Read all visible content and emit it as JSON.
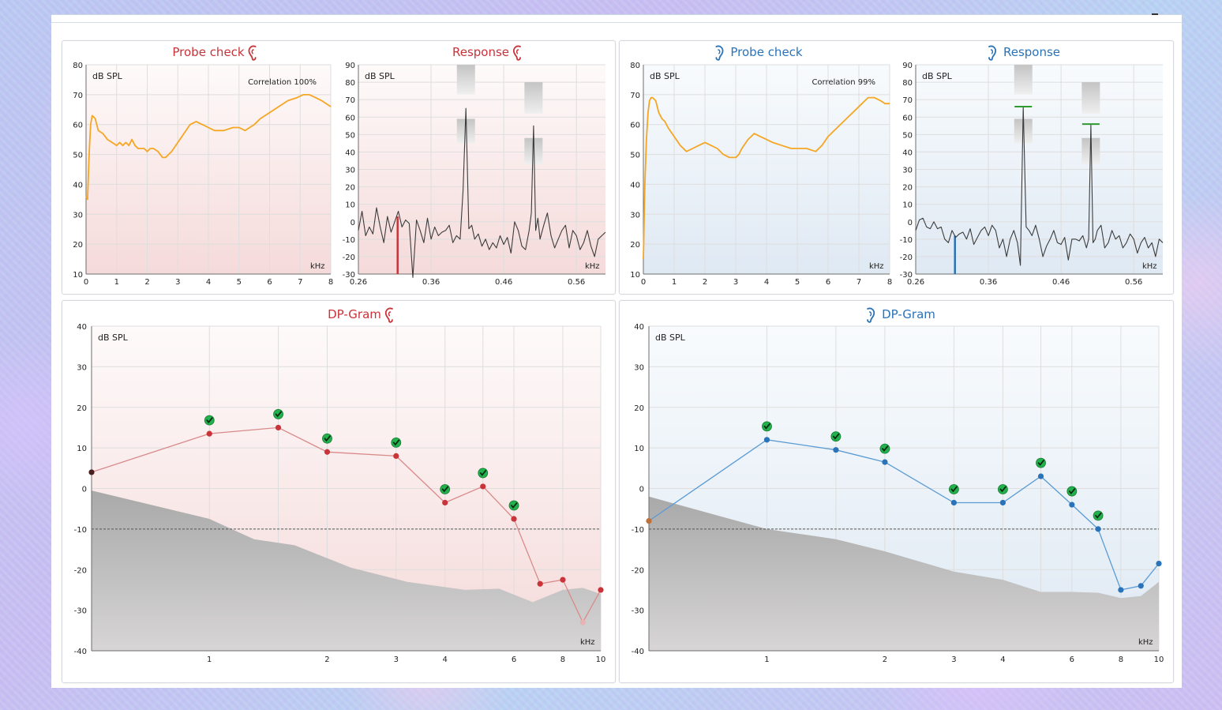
{
  "colors": {
    "right_ear": "#c8343a",
    "left_ear": "#2a73b8",
    "probe_curve": "#f5a623",
    "response_curve": "#3c3c3c",
    "check_green": "#22b14c",
    "threshold_line": "#2e9b2e"
  },
  "icons": {
    "right_ear": "right-ear-icon",
    "left_ear": "left-ear-icon",
    "check": "check-icon"
  },
  "chart_data": [
    {
      "id": "probe_right",
      "type": "line",
      "title": "Probe check",
      "ear": "right",
      "ylabel": "dB SPL",
      "xlabel": "kHz",
      "annotation": "Correlation 100%",
      "xlim": [
        0,
        8
      ],
      "ylim": [
        10,
        80
      ],
      "xticks": [
        "0",
        "1",
        "2",
        "3",
        "4",
        "5",
        "6",
        "7",
        "8"
      ],
      "yticks": [
        "10",
        "20",
        "30",
        "40",
        "50",
        "60",
        "70",
        "80"
      ],
      "grid": true,
      "x": [
        0,
        0.05,
        0.1,
        0.15,
        0.2,
        0.3,
        0.4,
        0.55,
        0.7,
        0.85,
        1.0,
        1.1,
        1.2,
        1.3,
        1.4,
        1.5,
        1.6,
        1.7,
        1.8,
        1.9,
        2.0,
        2.1,
        2.2,
        2.35,
        2.5,
        2.6,
        2.7,
        2.8,
        3.0,
        3.2,
        3.4,
        3.6,
        3.8,
        4.0,
        4.2,
        4.5,
        4.8,
        5.0,
        5.2,
        5.5,
        5.7,
        6.0,
        6.3,
        6.6,
        6.9,
        7.1,
        7.3,
        7.5,
        7.7,
        7.85,
        8.0
      ],
      "y": [
        36,
        35,
        50,
        60,
        63,
        62,
        58,
        57,
        55,
        54,
        53,
        54,
        53,
        54,
        53,
        55,
        53,
        52,
        52,
        52,
        51,
        52,
        52,
        51,
        49,
        49,
        50,
        51,
        54,
        57,
        60,
        61,
        60,
        59,
        58,
        58,
        59,
        59,
        58,
        60,
        62,
        64,
        66,
        68,
        69,
        70,
        70,
        69,
        68,
        67,
        66
      ]
    },
    {
      "id": "response_right",
      "type": "line",
      "title": "Response",
      "ear": "right",
      "ylabel": "dB SPL",
      "xlabel": "kHz",
      "xlim": [
        0.26,
        0.6
      ],
      "ylim": [
        -30,
        90
      ],
      "xticks": [
        "0.26",
        "0.36",
        "0.46",
        "0.56"
      ],
      "yticks": [
        "-30",
        "-20",
        "-10",
        "0",
        "10",
        "20",
        "30",
        "40",
        "50",
        "60",
        "70",
        "80",
        "90"
      ],
      "grid": true,
      "marker_x": 0.314,
      "noise_marker_top": 3,
      "peaks": [
        {
          "x": 0.408,
          "value": 65,
          "gray_top": 90,
          "gray_mid": 73,
          "gray_low_top": 59,
          "gray_low_bottom": 45
        },
        {
          "x": 0.501,
          "value": 55,
          "gray_top": 80,
          "gray_mid": 62,
          "gray_low_top": 48,
          "gray_low_bottom": 33
        }
      ],
      "x": [
        0.26,
        0.265,
        0.27,
        0.275,
        0.28,
        0.285,
        0.29,
        0.295,
        0.3,
        0.305,
        0.31,
        0.315,
        0.32,
        0.325,
        0.33,
        0.335,
        0.34,
        0.345,
        0.35,
        0.355,
        0.36,
        0.365,
        0.37,
        0.375,
        0.38,
        0.385,
        0.39,
        0.395,
        0.4,
        0.404,
        0.408,
        0.412,
        0.416,
        0.42,
        0.425,
        0.43,
        0.435,
        0.44,
        0.445,
        0.45,
        0.455,
        0.46,
        0.465,
        0.47,
        0.475,
        0.48,
        0.485,
        0.49,
        0.495,
        0.498,
        0.501,
        0.504,
        0.507,
        0.51,
        0.515,
        0.52,
        0.525,
        0.53,
        0.535,
        0.54,
        0.545,
        0.55,
        0.555,
        0.56,
        0.565,
        0.57,
        0.575,
        0.58,
        0.585,
        0.59,
        0.595,
        0.6
      ],
      "y": [
        -5,
        6,
        -8,
        -3,
        -7,
        8,
        -3,
        -12,
        3,
        -6,
        0,
        6,
        -3,
        1,
        -1,
        -32,
        1,
        -5,
        -12,
        2,
        -10,
        -3,
        -8,
        -6,
        -5,
        -2,
        -12,
        -8,
        -10,
        18,
        65,
        -4,
        -2,
        -10,
        -7,
        -14,
        -10,
        -16,
        -12,
        -15,
        -8,
        -13,
        -9,
        -18,
        0,
        -5,
        -14,
        -16,
        -5,
        5,
        55,
        -5,
        2,
        -10,
        -2,
        5,
        -8,
        -15,
        -10,
        -5,
        -2,
        -15,
        -5,
        -8,
        -16,
        -12,
        -5,
        -14,
        -20,
        -10,
        -8,
        -6
      ]
    },
    {
      "id": "probe_left",
      "type": "line",
      "title": "Probe check",
      "ear": "left",
      "ylabel": "dB SPL",
      "xlabel": "kHz",
      "annotation": "Correlation 99%",
      "xlim": [
        0,
        8
      ],
      "ylim": [
        10,
        80
      ],
      "xticks": [
        "0",
        "1",
        "2",
        "3",
        "4",
        "5",
        "6",
        "7",
        "8"
      ],
      "yticks": [
        "10",
        "20",
        "30",
        "40",
        "50",
        "60",
        "70",
        "80"
      ],
      "grid": true,
      "x": [
        0,
        0.05,
        0.1,
        0.15,
        0.2,
        0.25,
        0.3,
        0.4,
        0.5,
        0.6,
        0.7,
        0.8,
        1.0,
        1.2,
        1.4,
        1.6,
        1.8,
        2.0,
        2.2,
        2.4,
        2.6,
        2.8,
        3.0,
        3.1,
        3.2,
        3.4,
        3.6,
        3.8,
        4.0,
        4.2,
        4.5,
        4.8,
        5.0,
        5.3,
        5.6,
        5.8,
        6.0,
        6.3,
        6.6,
        6.9,
        7.1,
        7.3,
        7.5,
        7.7,
        7.85,
        8.0
      ],
      "y": [
        15,
        40,
        55,
        64,
        68,
        69,
        69,
        68,
        64,
        62,
        61,
        59,
        56,
        53,
        51,
        52,
        53,
        54,
        53,
        52,
        50,
        49,
        49,
        50,
        52,
        55,
        57,
        56,
        55,
        54,
        53,
        52,
        52,
        52,
        51,
        53,
        56,
        59,
        62,
        65,
        67,
        69,
        69,
        68,
        67,
        67
      ]
    },
    {
      "id": "response_left",
      "type": "line",
      "title": "Response",
      "ear": "left",
      "ylabel": "dB SPL",
      "xlabel": "kHz",
      "xlim": [
        0.26,
        0.6
      ],
      "ylim": [
        -30,
        90
      ],
      "xticks": [
        "0.26",
        "0.36",
        "0.46",
        "0.56"
      ],
      "yticks": [
        "-30",
        "-20",
        "-10",
        "0",
        "10",
        "20",
        "30",
        "40",
        "50",
        "60",
        "70",
        "80",
        "90"
      ],
      "grid": true,
      "marker_x": 0.314,
      "noise_marker_top": -8,
      "peaks": [
        {
          "x": 0.408,
          "value": 66,
          "gray_top": 90,
          "gray_mid": 73,
          "gray_low_top": 59,
          "gray_low_bottom": 45,
          "threshold": 66
        },
        {
          "x": 0.501,
          "value": 56,
          "gray_top": 80,
          "gray_mid": 62,
          "gray_low_top": 48,
          "gray_low_bottom": 33,
          "threshold": 56
        }
      ],
      "x": [
        0.26,
        0.265,
        0.27,
        0.275,
        0.28,
        0.285,
        0.29,
        0.295,
        0.3,
        0.305,
        0.31,
        0.315,
        0.32,
        0.325,
        0.33,
        0.335,
        0.34,
        0.345,
        0.35,
        0.355,
        0.36,
        0.365,
        0.37,
        0.375,
        0.38,
        0.385,
        0.39,
        0.395,
        0.4,
        0.404,
        0.408,
        0.412,
        0.416,
        0.42,
        0.425,
        0.43,
        0.435,
        0.44,
        0.445,
        0.45,
        0.455,
        0.46,
        0.465,
        0.47,
        0.475,
        0.48,
        0.485,
        0.49,
        0.495,
        0.498,
        0.501,
        0.504,
        0.507,
        0.51,
        0.515,
        0.52,
        0.525,
        0.53,
        0.535,
        0.54,
        0.545,
        0.55,
        0.555,
        0.56,
        0.565,
        0.57,
        0.575,
        0.58,
        0.585,
        0.59,
        0.595,
        0.6
      ],
      "y": [
        -5,
        1,
        2,
        -3,
        -4,
        0,
        -4,
        -3,
        -10,
        -12,
        -5,
        -9,
        -7,
        -6,
        -10,
        -4,
        -13,
        -9,
        -5,
        -3,
        -8,
        -2,
        -5,
        -15,
        -10,
        -20,
        -10,
        -5,
        -12,
        -25,
        66,
        -3,
        -5,
        -8,
        -2,
        -10,
        -20,
        -14,
        -10,
        -5,
        -12,
        -13,
        -9,
        -22,
        -10,
        -10,
        -11,
        -8,
        -15,
        -10,
        56,
        -12,
        -10,
        -5,
        -2,
        -15,
        -12,
        -5,
        -10,
        -8,
        -15,
        -12,
        -7,
        -10,
        -18,
        -12,
        -9,
        -15,
        -12,
        -20,
        -10,
        -12
      ]
    },
    {
      "id": "dpgram_right",
      "type": "line",
      "title": "DP-Gram",
      "ear": "right",
      "ylabel": "dB SPL",
      "xlabel": "kHz",
      "xscale": "log",
      "xlim": [
        0.5,
        10
      ],
      "ylim": [
        -40,
        40
      ],
      "xticks": [
        "1",
        "2",
        "3",
        "4",
        "6",
        "8",
        "10"
      ],
      "xtick_values": [
        1,
        2,
        3,
        4,
        6,
        8,
        10
      ],
      "grid_x": [
        1,
        1.5,
        2,
        3,
        4,
        5,
        6,
        8,
        10
      ],
      "yticks": [
        "-40",
        "-30",
        "-20",
        "-10",
        "0",
        "10",
        "20",
        "30",
        "40"
      ],
      "reference_line": -10,
      "noise_floor": {
        "x": [
          0.5,
          1,
          1.3,
          1.65,
          2.3,
          3.2,
          4.5,
          5.5,
          6.7,
          8,
          9,
          10
        ],
        "y": [
          -0.5,
          -7.5,
          -12.5,
          -14,
          -19.5,
          -23,
          -25,
          -24.7,
          -28,
          -25,
          -24.5,
          -26
        ]
      },
      "x": [
        0.5,
        1,
        1.5,
        2,
        3,
        4,
        5,
        6,
        7,
        8,
        9,
        10
      ],
      "y": [
        4,
        13.5,
        15,
        9,
        8,
        -3.5,
        0.5,
        -7.5,
        -23.5,
        -22.5,
        -33,
        -25
      ],
      "point_status": [
        "neutral",
        "pass",
        "pass",
        "pass",
        "pass",
        "pass",
        "pass",
        "pass",
        "none",
        "none",
        "faded",
        "none"
      ]
    },
    {
      "id": "dpgram_left",
      "type": "line",
      "title": "DP-Gram",
      "ear": "left",
      "ylabel": "dB SPL",
      "xlabel": "kHz",
      "xscale": "log",
      "xlim": [
        0.5,
        10
      ],
      "ylim": [
        -40,
        40
      ],
      "xticks": [
        "1",
        "2",
        "3",
        "4",
        "6",
        "8",
        "10"
      ],
      "xtick_values": [
        1,
        2,
        3,
        4,
        6,
        8,
        10
      ],
      "grid_x": [
        1,
        1.5,
        2,
        3,
        4,
        5,
        6,
        8,
        10
      ],
      "yticks": [
        "-40",
        "-30",
        "-20",
        "-10",
        "0",
        "10",
        "20",
        "30",
        "40"
      ],
      "reference_line": -10,
      "noise_floor": {
        "x": [
          0.5,
          1,
          1.5,
          2,
          3,
          4,
          5,
          6,
          7,
          8,
          9,
          10
        ],
        "y": [
          -2,
          -10,
          -12.5,
          -15.5,
          -20.5,
          -22.5,
          -25.5,
          -25.5,
          -25.7,
          -27,
          -26.5,
          -23
        ]
      },
      "x": [
        0.5,
        1,
        1.5,
        2,
        3,
        4,
        5,
        6,
        7,
        8,
        9,
        10
      ],
      "y": [
        -8,
        12,
        9.5,
        6.5,
        -3.5,
        -3.5,
        3,
        -4,
        -10,
        -25,
        -24,
        -18.5
      ],
      "point_status": [
        "neutral",
        "pass",
        "pass",
        "pass",
        "pass",
        "pass",
        "pass",
        "pass",
        "pass",
        "none",
        "none",
        "none"
      ]
    }
  ]
}
